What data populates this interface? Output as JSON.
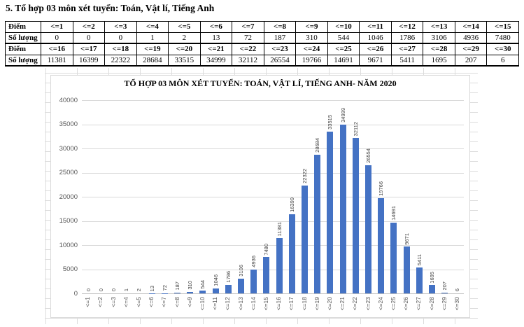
{
  "page": {
    "heading": "5. Tổ hợp 03 môn xét tuyển: Toán, Vật lí, Tiếng Anh"
  },
  "table": {
    "row_headers": [
      "Điểm",
      "Số lượng",
      "Điểm",
      "Số lượng"
    ],
    "rows": [
      [
        "<=1",
        "<=2",
        "<=3",
        "<=4",
        "<=5",
        "<=6",
        "<=7",
        "<=8",
        "<=9",
        "<=10",
        "<=11",
        "<=12",
        "<=13",
        "<=14",
        "<=15"
      ],
      [
        "0",
        "0",
        "0",
        "1",
        "2",
        "13",
        "72",
        "187",
        "310",
        "544",
        "1046",
        "1786",
        "3106",
        "4936",
        "7480"
      ],
      [
        "<=16",
        "<=17",
        "<=18",
        "<=19",
        "<=20",
        "<=21",
        "<=22",
        "<=23",
        "<=24",
        "<=25",
        "<=26",
        "<=27",
        "<=28",
        "<=29",
        "<=30"
      ],
      [
        "11381",
        "16399",
        "22322",
        "28684",
        "33515",
        "34999",
        "32112",
        "26554",
        "19766",
        "14691",
        "9671",
        "5411",
        "1695",
        "207",
        "6"
      ]
    ]
  },
  "chart_data": {
    "type": "bar",
    "title": "TỔ HỢP 03 MÔN XÉT TUYỂN: TOÁN, VẬT LÍ, TIẾNG ANH- NĂM 2020",
    "categories": [
      "<=1",
      "<=2",
      "<=3",
      "<=4",
      "<=5",
      "<=6",
      "<=7",
      "<=8",
      "<=9",
      "<=10",
      "<=11",
      "<=12",
      "<=13",
      "<=14",
      "<=15",
      "<=16",
      "<=17",
      "<=18",
      "<=19",
      "<=20",
      "<=21",
      "<=22",
      "<=23",
      "<=24",
      "<=25",
      "<=26",
      "<=27",
      "<=28",
      "<=29",
      "<=30"
    ],
    "values": [
      0,
      0,
      0,
      1,
      2,
      13,
      72,
      187,
      310,
      544,
      1046,
      1786,
      3106,
      4936,
      7480,
      11381,
      16399,
      22322,
      28684,
      33515,
      34999,
      32112,
      26554,
      19766,
      14691,
      9671,
      5411,
      1695,
      207,
      6
    ],
    "xlabel": "",
    "ylabel": "",
    "ylim": [
      0,
      40000
    ],
    "ytick_step": 5000,
    "grid": true,
    "legend": "none",
    "data_labels": true,
    "bar_color": "#4472C4",
    "gridline_color": "#D9D9D9",
    "axis_label_color": "#595959",
    "data_label_color": "#404040"
  }
}
